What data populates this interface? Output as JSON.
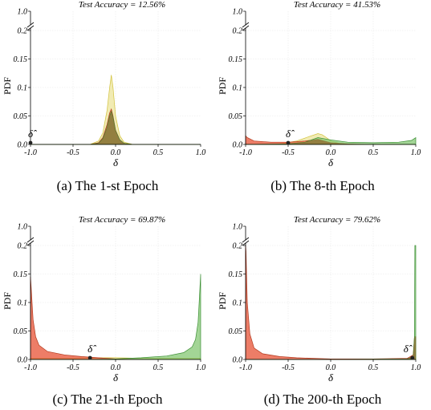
{
  "colors": {
    "yellow_fill": "#efe8a6",
    "yellow_line": "#d2c23c",
    "red_fill": "#e8593c",
    "red_line": "#b23a1e",
    "green_fill": "#7cc36a",
    "green_line": "#3c8f35",
    "brown_fill": "#8a5a24",
    "marker": "#222222"
  },
  "chart_data": [
    {
      "type": "area",
      "title": "Test Accuracy = 12.56%",
      "caption": "(a)  The 1-st Epoch",
      "xlabel": "δ",
      "ylabel": "PDF",
      "xlim": [
        -1.0,
        1.0
      ],
      "ylim": [
        0.0,
        1.0
      ],
      "y_axis_break": [
        0.2,
        1.0
      ],
      "xticks": [
        "-1.0",
        "-0.5",
        "0.0",
        "0.5",
        "1.0"
      ],
      "yticks": [
        "0.0",
        "0.05",
        "0.1",
        "0.15",
        "0.2",
        "1.0"
      ],
      "delta_hat": {
        "label": "δ̂",
        "x": -1.0
      },
      "series": [
        {
          "color": "yellow",
          "x": [
            -1.0,
            -0.3,
            -0.2,
            -0.15,
            -0.1,
            -0.07,
            -0.05,
            -0.03,
            0.0,
            0.05,
            0.1,
            0.2,
            1.0
          ],
          "y": [
            0.0,
            0.0,
            0.006,
            0.02,
            0.06,
            0.1,
            0.122,
            0.1,
            0.05,
            0.015,
            0.004,
            0.0,
            0.0
          ]
        },
        {
          "color": "red",
          "x": [
            -1.0,
            -0.3,
            -0.2,
            -0.15,
            -0.1,
            -0.07,
            -0.05,
            -0.03,
            0.0,
            0.05,
            0.1,
            0.2,
            1.0
          ],
          "y": [
            0.0,
            0.0,
            0.003,
            0.012,
            0.035,
            0.055,
            0.062,
            0.05,
            0.025,
            0.008,
            0.002,
            0.0,
            0.0
          ]
        },
        {
          "color": "green",
          "x": [
            -1.0,
            -0.3,
            -0.2,
            -0.15,
            -0.1,
            -0.07,
            -0.05,
            -0.03,
            0.0,
            0.05,
            0.1,
            0.2,
            1.0
          ],
          "y": [
            0.0,
            0.0,
            0.002,
            0.01,
            0.03,
            0.05,
            0.058,
            0.048,
            0.024,
            0.008,
            0.002,
            0.0,
            0.0
          ]
        }
      ]
    },
    {
      "type": "area",
      "title": "Test Accuracy = 41.53%",
      "caption": "(b)  The 8-th Epoch",
      "xlabel": "δ",
      "ylabel": "PDF",
      "xlim": [
        -1.0,
        1.0
      ],
      "ylim": [
        0.0,
        1.0
      ],
      "y_axis_break": [
        0.2,
        1.0
      ],
      "xticks": [
        "-1.0",
        "-0.5",
        "0.0",
        "0.5",
        "1.0"
      ],
      "yticks": [
        "0.0",
        "0.05",
        "0.1",
        "0.15",
        "0.2",
        "1.0"
      ],
      "delta_hat": {
        "label": "δ̂",
        "x": -0.5
      },
      "series": [
        {
          "color": "yellow",
          "x": [
            -1.0,
            -0.6,
            -0.4,
            -0.25,
            -0.15,
            -0.1,
            -0.05,
            0.0,
            0.1,
            0.3,
            0.6,
            1.0
          ],
          "y": [
            0.0,
            0.001,
            0.006,
            0.014,
            0.019,
            0.017,
            0.012,
            0.006,
            0.002,
            0.0,
            0.0,
            0.0
          ]
        },
        {
          "color": "red",
          "x": [
            -1.0,
            -0.98,
            -0.9,
            -0.7,
            -0.5,
            -0.3,
            -0.15,
            0.0,
            0.2,
            0.5,
            1.0
          ],
          "y": [
            0.015,
            0.012,
            0.006,
            0.004,
            0.004,
            0.006,
            0.009,
            0.003,
            0.001,
            0.0,
            0.0
          ]
        },
        {
          "color": "green",
          "x": [
            -1.0,
            -0.5,
            -0.3,
            -0.15,
            0.0,
            0.2,
            0.5,
            0.8,
            0.95,
            0.98,
            1.0
          ],
          "y": [
            0.0,
            0.001,
            0.004,
            0.012,
            0.008,
            0.004,
            0.003,
            0.004,
            0.007,
            0.01,
            0.012
          ]
        }
      ]
    },
    {
      "type": "area",
      "title": "Test Accuracy = 69.87%",
      "caption": "(c)  The 21-th Epoch",
      "xlabel": "δ",
      "ylabel": "PDF",
      "xlim": [
        -1.0,
        1.0
      ],
      "ylim": [
        0.0,
        1.0
      ],
      "y_axis_break": [
        0.2,
        1.0
      ],
      "xticks": [
        "-1.0",
        "-0.5",
        "0.0",
        "0.5",
        "1.0"
      ],
      "yticks": [
        "0.0",
        "0.05",
        "0.1",
        "0.15",
        "0.2",
        "1.0"
      ],
      "delta_hat": {
        "label": "δ̂",
        "x": -0.3
      },
      "series": [
        {
          "color": "yellow",
          "x": [
            -1.0,
            -0.6,
            -0.3,
            0.0,
            0.3,
            0.6,
            1.0
          ],
          "y": [
            0.002,
            0.002,
            0.003,
            0.003,
            0.002,
            0.002,
            0.002
          ]
        },
        {
          "color": "red",
          "x": [
            -1.0,
            -0.99,
            -0.97,
            -0.94,
            -0.9,
            -0.8,
            -0.6,
            -0.4,
            -0.2,
            0.0,
            0.3,
            1.0
          ],
          "y": [
            0.145,
            0.12,
            0.07,
            0.04,
            0.025,
            0.014,
            0.008,
            0.005,
            0.003,
            0.001,
            0.0,
            0.0
          ]
        },
        {
          "color": "green",
          "x": [
            -1.0,
            -0.3,
            0.0,
            0.3,
            0.6,
            0.8,
            0.9,
            0.94,
            0.97,
            0.99,
            1.0
          ],
          "y": [
            0.0,
            0.0,
            0.001,
            0.003,
            0.006,
            0.012,
            0.022,
            0.035,
            0.065,
            0.12,
            0.15
          ]
        }
      ]
    },
    {
      "type": "area",
      "title": "Test Accuracy = 79.62%",
      "caption": "(d)  The 200-th Epoch",
      "xlabel": "δ",
      "ylabel": "PDF",
      "xlim": [
        -1.0,
        1.0
      ],
      "ylim": [
        0.0,
        1.0
      ],
      "y_axis_break": [
        0.2,
        1.0
      ],
      "xticks": [
        "-1.0",
        "-0.5",
        "0.0",
        "0.5",
        "1.0"
      ],
      "yticks": [
        "0.0",
        "0.05",
        "0.1",
        "0.15",
        "0.2",
        "1.0"
      ],
      "delta_hat": {
        "label": "δ̂",
        "x": 0.96
      },
      "series": [
        {
          "color": "yellow",
          "x": [
            -1.0,
            0.0,
            1.0
          ],
          "y": [
            0.0,
            0.0,
            0.0
          ]
        },
        {
          "color": "red",
          "x": [
            -1.0,
            -0.995,
            -0.98,
            -0.95,
            -0.9,
            -0.8,
            -0.6,
            -0.4,
            -0.2,
            0.0,
            0.5,
            0.9,
            0.97,
            0.985,
            1.0
          ],
          "y": [
            0.21,
            0.19,
            0.1,
            0.045,
            0.02,
            0.01,
            0.005,
            0.003,
            0.002,
            0.001,
            0.001,
            0.002,
            0.008,
            0.04,
            0.04
          ]
        },
        {
          "color": "green",
          "x": [
            -1.0,
            0.0,
            0.9,
            0.97,
            0.985,
            0.99,
            1.0
          ],
          "y": [
            0.0,
            0.0,
            0.001,
            0.005,
            0.04,
            0.21,
            0.21
          ]
        }
      ]
    }
  ]
}
